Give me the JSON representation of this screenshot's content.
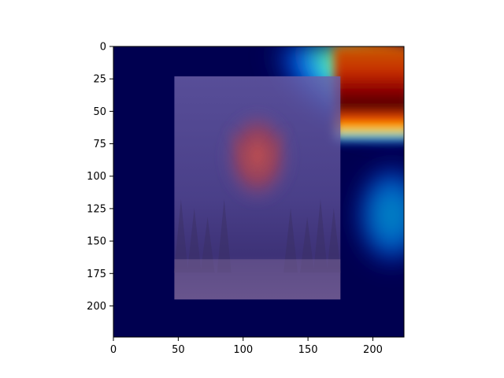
{
  "chart_data": {
    "type": "heatmap",
    "title": "",
    "xlabel": "",
    "ylabel": "",
    "xlim": [
      0,
      224
    ],
    "ylim": [
      224,
      0
    ],
    "x_ticks": [
      0,
      50,
      100,
      150,
      200
    ],
    "y_ticks": [
      0,
      25,
      50,
      75,
      100,
      125,
      150,
      175,
      200
    ],
    "grid": false,
    "colormap": "jet",
    "overlay_image": {
      "content": "dark symmetric forest scene with a reddish moth-like figure in the center",
      "x_range": [
        47,
        175
      ],
      "y_range": [
        23,
        195
      ]
    },
    "heatmap_regions": [
      {
        "name": "hot-band-top-right",
        "x_range": [
          175,
          224
        ],
        "y_range": [
          0,
          70
        ],
        "intensity": 0.95
      },
      {
        "name": "warm-arc-corner",
        "x_range": [
          115,
          175
        ],
        "y_range": [
          0,
          75
        ],
        "intensity": 0.6
      },
      {
        "name": "mid-blob-right",
        "x_range": [
          185,
          224
        ],
        "y_range": [
          100,
          160
        ],
        "intensity": 0.3
      }
    ],
    "colors": {
      "background_low": "#000050",
      "cool": "#0000ff",
      "mid": "#00ffff",
      "warm": "#ffff00",
      "hot": "#ff0000",
      "peak": "#800000"
    }
  }
}
